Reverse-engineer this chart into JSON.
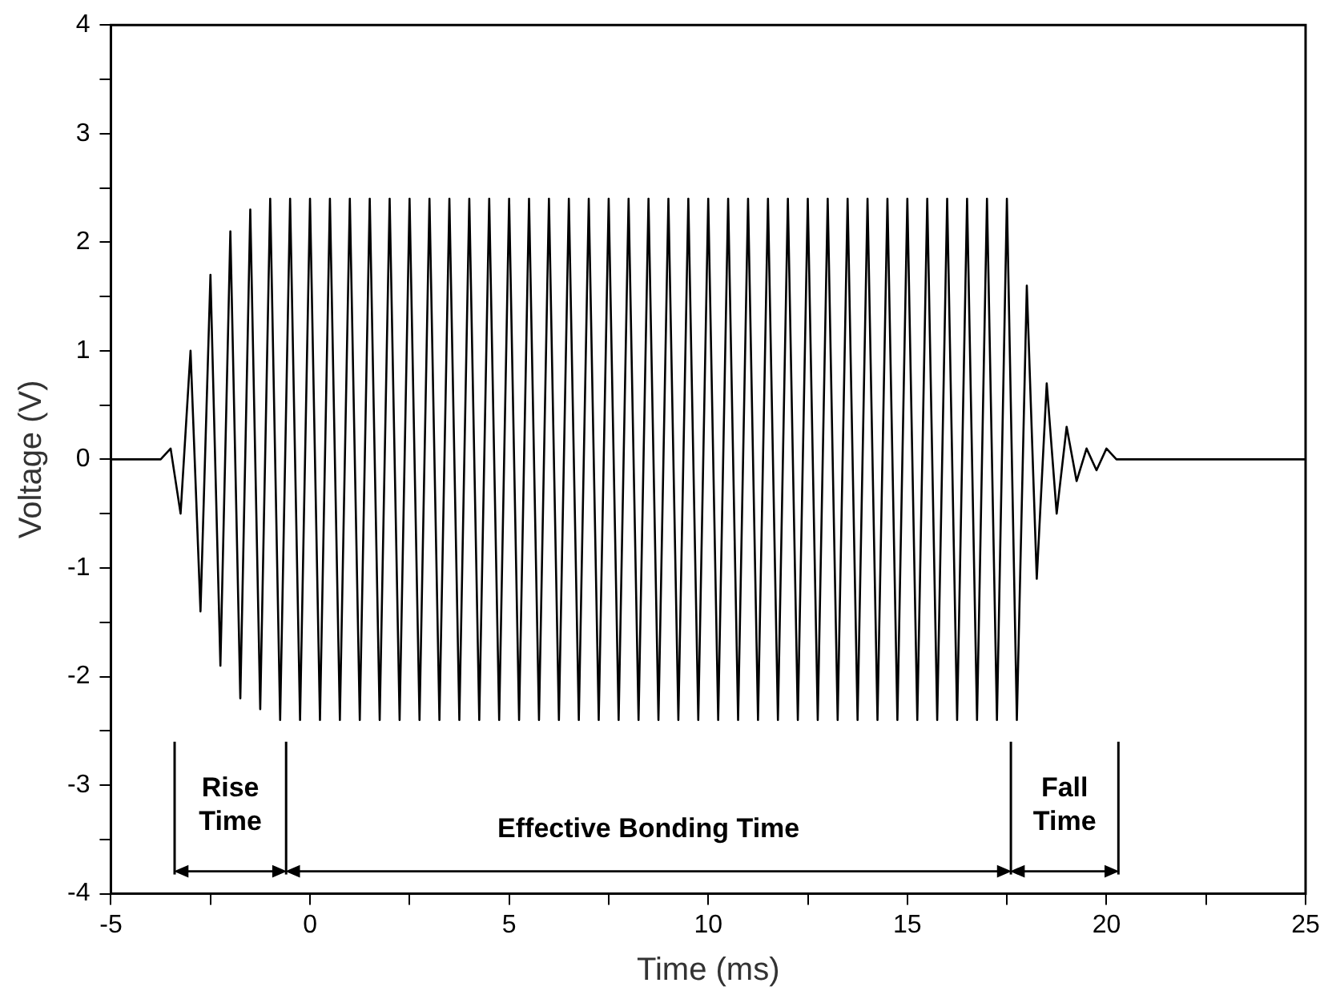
{
  "chart_data": {
    "type": "line",
    "xlabel": "Time (ms)",
    "ylabel": "Voltage (V)",
    "xlim": [
      -5,
      25
    ],
    "ylim": [
      -4,
      4
    ],
    "xticks": [
      -5,
      {
        "value": -2.5,
        "label": null
      },
      0,
      {
        "value": 2.5,
        "label": null
      },
      5,
      {
        "value": 7.5,
        "label": null
      },
      10,
      {
        "value": 12.5,
        "label": null
      },
      15,
      {
        "value": 17.5,
        "label": null
      },
      20,
      {
        "value": 22.5,
        "label": null
      },
      25
    ],
    "yticks": [
      -4,
      {
        "value": -3.5,
        "label": null
      },
      -3,
      {
        "value": -2.5,
        "label": null
      },
      -2,
      {
        "value": -1.5,
        "label": null
      },
      -1,
      {
        "value": -0.5,
        "label": null
      },
      0,
      {
        "value": 0.5,
        "label": null
      },
      1,
      {
        "value": 1.5,
        "label": null
      },
      2,
      {
        "value": 2.5,
        "label": null
      },
      3,
      {
        "value": 3.5,
        "label": null
      },
      4
    ],
    "grid": false,
    "legend": false,
    "marker": "none",
    "line_style": "solid",
    "series": [
      {
        "color": "#000000",
        "x": [
          -5,
          -4,
          -3.75,
          -3.5,
          -3.25,
          -3,
          -2.75,
          -2.5,
          -2.25,
          -2,
          -1.75,
          -1.5,
          -1.25,
          -1,
          -0.75,
          -0.5,
          -0.25,
          0,
          0.25,
          0.5,
          0.75,
          1,
          1.25,
          1.5,
          1.75,
          2,
          2.25,
          2.5,
          2.75,
          3,
          3.25,
          3.5,
          3.75,
          4,
          4.25,
          4.5,
          4.75,
          5,
          5.25,
          5.5,
          5.75,
          6,
          6.25,
          6.5,
          6.75,
          7,
          7.25,
          7.5,
          7.75,
          8,
          8.25,
          8.5,
          8.75,
          9,
          9.25,
          9.5,
          9.75,
          10,
          10.25,
          10.5,
          10.75,
          11,
          11.25,
          11.5,
          11.75,
          12,
          12.25,
          12.5,
          12.75,
          13,
          13.25,
          13.5,
          13.75,
          14,
          14.25,
          14.5,
          14.75,
          15,
          15.25,
          15.5,
          15.75,
          16,
          16.25,
          16.5,
          16.75,
          17,
          17.25,
          17.5,
          17.75,
          18,
          18.25,
          18.5,
          18.75,
          19,
          19.25,
          19.5,
          19.75,
          20,
          20.25,
          20.5,
          21,
          23,
          25
        ],
        "values": [
          0,
          0,
          0,
          0.1,
          -0.5,
          1.0,
          -1.4,
          1.7,
          -1.9,
          2.1,
          -2.2,
          2.3,
          -2.3,
          2.4,
          -2.4,
          2.4,
          -2.4,
          2.4,
          -2.4,
          2.4,
          -2.4,
          2.4,
          -2.4,
          2.4,
          -2.4,
          2.4,
          -2.4,
          2.4,
          -2.4,
          2.4,
          -2.4,
          2.4,
          -2.4,
          2.4,
          -2.4,
          2.4,
          -2.4,
          2.4,
          -2.4,
          2.4,
          -2.4,
          2.4,
          -2.4,
          2.4,
          -2.4,
          2.4,
          -2.4,
          2.4,
          -2.4,
          2.4,
          -2.4,
          2.4,
          -2.4,
          2.4,
          -2.4,
          2.4,
          -2.4,
          2.4,
          -2.4,
          2.4,
          -2.4,
          2.4,
          -2.4,
          2.4,
          -2.4,
          2.4,
          -2.4,
          2.4,
          -2.4,
          2.4,
          -2.4,
          2.4,
          -2.4,
          2.4,
          -2.4,
          2.4,
          -2.4,
          2.4,
          -2.4,
          2.4,
          -2.4,
          2.4,
          -2.4,
          2.4,
          -2.4,
          2.4,
          -2.4,
          2.4,
          -2.4,
          1.6,
          -1.1,
          0.7,
          -0.5,
          0.3,
          -0.2,
          0.1,
          -0.1,
          0.1,
          0,
          0,
          0,
          0,
          0
        ]
      }
    ],
    "ref_lines": [
      {
        "axis": "x",
        "value": -3.4
      },
      {
        "axis": "x",
        "value": -0.6
      },
      {
        "axis": "x",
        "value": 17.6
      },
      {
        "axis": "x",
        "value": 20.3
      }
    ],
    "annotations": [
      "Rise Time",
      "Effective Bonding Time",
      "Fall Time"
    ]
  }
}
